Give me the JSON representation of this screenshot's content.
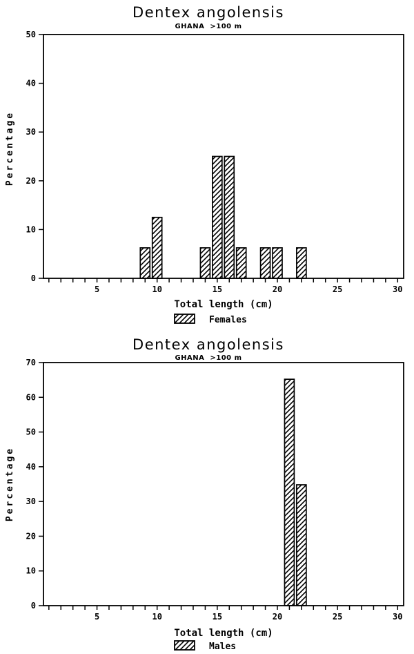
{
  "page": {
    "background": "#ffffff",
    "ink": "#000000"
  },
  "chart_data": [
    {
      "type": "bar",
      "title": "Dentex angolensis",
      "subtitle": "GHANA  >100 m",
      "xlabel": "Total length (cm)",
      "ylabel": "Percentage",
      "series": [
        {
          "name": "Females",
          "x": [
            9,
            10,
            14,
            15,
            16,
            17,
            19,
            20,
            22
          ],
          "values": [
            6.25,
            12.5,
            6.25,
            25,
            25,
            6.25,
            6.25,
            6.25,
            6.25
          ]
        }
      ],
      "bar_width": 0.8,
      "xlim": [
        0.55,
        30.5
      ],
      "ylim": [
        0,
        50
      ],
      "xticks_every": 1,
      "xtick_labels": [
        5,
        10,
        15,
        20,
        25,
        30
      ],
      "yticks": [
        0,
        10,
        20,
        30,
        40,
        50
      ],
      "grid": false,
      "legend_position": "bottom",
      "hatch": "diagonal",
      "bar_fill": "#ffffff",
      "stroke": "#000000"
    },
    {
      "type": "bar",
      "title": "Dentex angolensis",
      "subtitle": "GHANA  >100 m",
      "xlabel": "Total length (cm)",
      "ylabel": "Percentage",
      "series": [
        {
          "name": "Males",
          "x": [
            21,
            22
          ],
          "values": [
            65.2,
            34.8
          ]
        }
      ],
      "bar_width": 0.8,
      "xlim": [
        0.55,
        30.5
      ],
      "ylim": [
        0,
        70
      ],
      "xticks_every": 1,
      "xtick_labels": [
        5,
        10,
        15,
        20,
        25,
        30
      ],
      "yticks": [
        0,
        10,
        20,
        30,
        40,
        50,
        60,
        70
      ],
      "grid": false,
      "legend_position": "bottom",
      "hatch": "diagonal",
      "bar_fill": "#ffffff",
      "stroke": "#000000"
    }
  ]
}
